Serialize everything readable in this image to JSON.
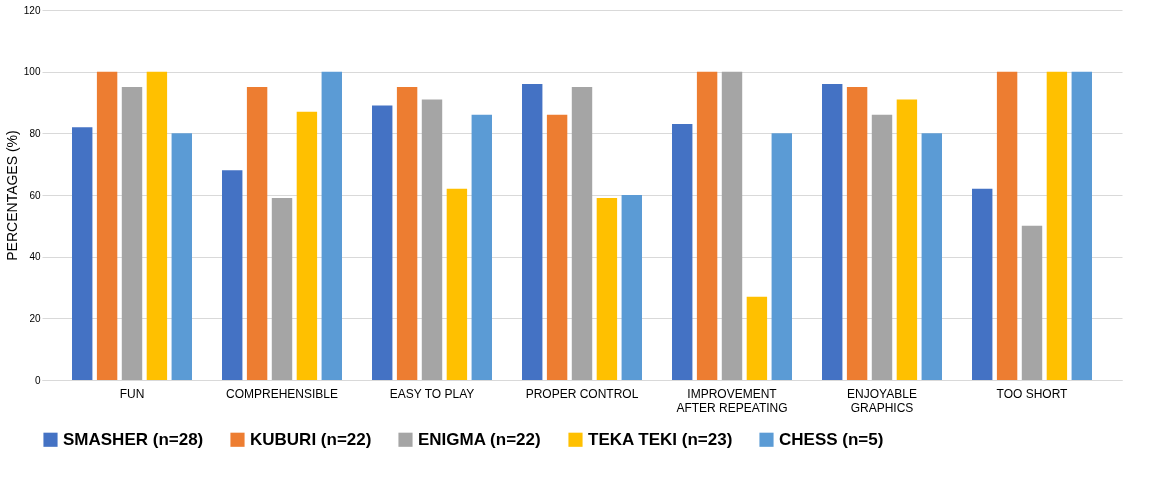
{
  "chart_data": {
    "type": "bar",
    "ylabel": "PERCENTAGES (%)",
    "categories": [
      "FUN",
      "COMPREHENSIBLE",
      "EASY TO PLAY",
      "PROPER CONTROL",
      "IMPROVEMENT\nAFTER REPEATING",
      "ENJOYABLE\nGRAPHICS",
      "TOO  SHORT"
    ],
    "series": [
      {
        "name": "SMASHER (n=28)",
        "color": "#4472c4",
        "values": [
          82,
          68,
          89,
          96,
          83,
          96,
          62
        ]
      },
      {
        "name": "KUBURI (n=22)",
        "color": "#ed7d31",
        "values": [
          100,
          95,
          95,
          86,
          100,
          95,
          100
        ]
      },
      {
        "name": "ENIGMA (n=22)",
        "color": "#a5a5a5",
        "values": [
          95,
          59,
          91,
          95,
          100,
          86,
          50
        ]
      },
      {
        "name": "TEKA TEKI (n=23)",
        "color": "#ffc000",
        "values": [
          100,
          87,
          62,
          59,
          27,
          91,
          100
        ]
      },
      {
        "name": "CHESS (n=5)",
        "color": "#5b9bd5",
        "values": [
          80,
          100,
          86,
          60,
          80,
          80,
          100
        ]
      }
    ],
    "ylim": [
      0,
      120
    ],
    "yticks": [
      0,
      20,
      40,
      60,
      80,
      100,
      120
    ],
    "grid": "y",
    "legend": "bottom"
  }
}
